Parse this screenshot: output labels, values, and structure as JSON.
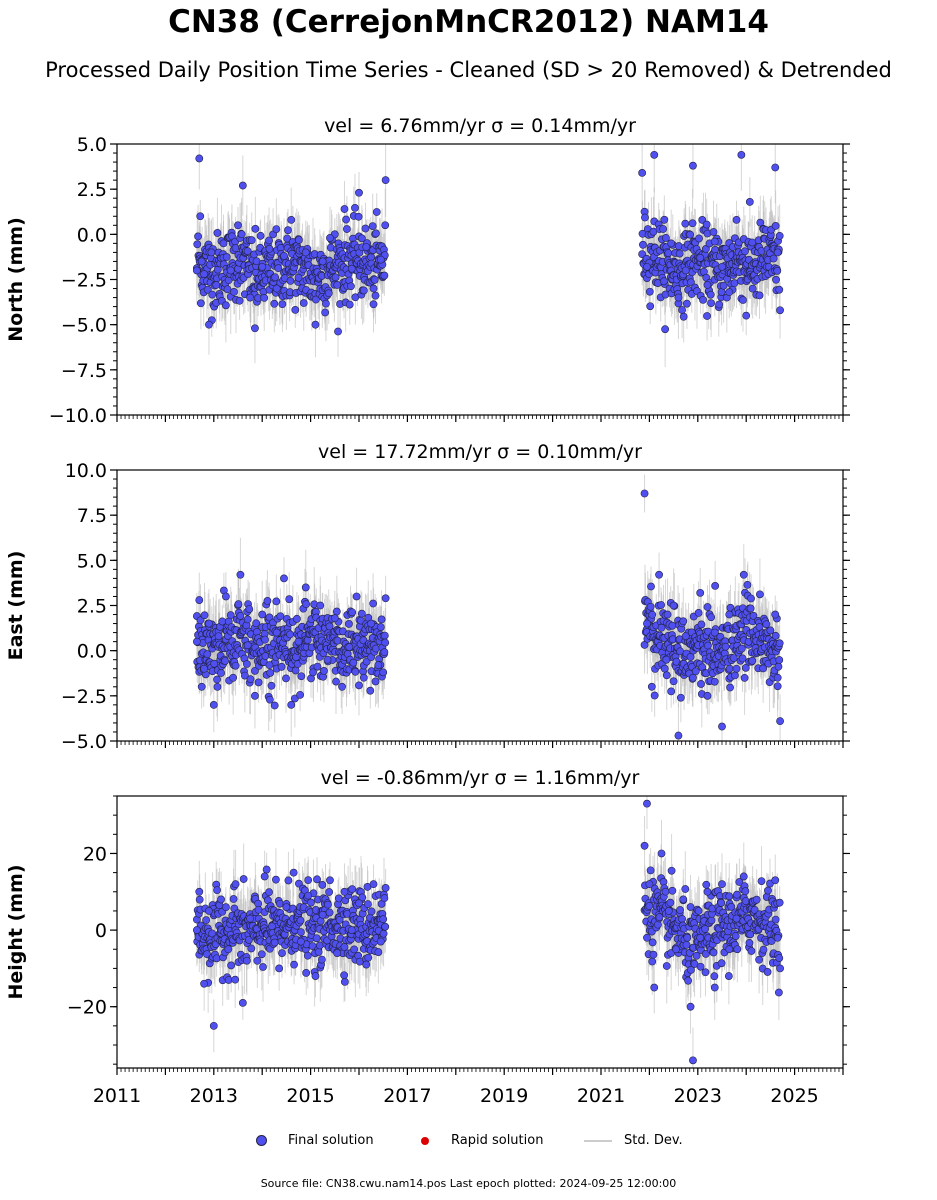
{
  "title": "CN38 (CerrejonMnCR2012) NAM14",
  "subtitle": "Processed Daily Position Time Series - Cleaned (SD > 20 Removed) & Detrended",
  "legend": {
    "final": "Final solution",
    "rapid": "Rapid solution",
    "std": "Std. Dev."
  },
  "footer": "Source file: CN38.cwu.nam14.pos  Last epoch plotted: 2024-09-25 12:00:00",
  "colors": {
    "final": "#5050f0",
    "final_edge": "#222244",
    "rapid": "#dd0000",
    "std": "#bbbbbb"
  },
  "chart_data": [
    {
      "type": "scatter",
      "title": "vel = 6.76mm/yr   σ = 0.14mm/yr",
      "ylabel": "North (mm)",
      "xlim": [
        2011,
        2026
      ],
      "ylim": [
        -10,
        5
      ],
      "yticks": [
        -10,
        -7.5,
        -5,
        -2.5,
        0,
        2.5,
        5
      ],
      "ytick_labels": [
        "−10.0",
        "−7.5",
        "−5.0",
        "−2.5",
        "0.0",
        "2.5",
        "5.0"
      ],
      "x": [
        2012.65,
        2012.7,
        2012.72,
        2012.75,
        2012.8,
        2012.9,
        2012.95,
        2013.05,
        2013.2,
        2013.35,
        2013.5,
        2013.6,
        2013.75,
        2013.85,
        2014.0,
        2014.15,
        2014.3,
        2014.45,
        2014.6,
        2014.75,
        2014.9,
        2015.1,
        2015.25,
        2015.4,
        2015.55,
        2015.7,
        2015.85,
        2016.0,
        2016.15,
        2016.3,
        2016.45,
        2016.55,
        2021.85,
        2021.95,
        2022.1,
        2022.3,
        2022.45,
        2022.6,
        2022.75,
        2022.9,
        2023.05,
        2023.2,
        2023.35,
        2023.5,
        2023.65,
        2023.8,
        2023.9,
        2024.0,
        2024.6,
        2024.65,
        2024.7
      ],
      "y": [
        -2.0,
        4.2,
        1.0,
        -1.5,
        -2.2,
        -5.0,
        -1.0,
        -2.8,
        -0.5,
        -2.0,
        0.5,
        2.7,
        -3.5,
        -5.2,
        -1.8,
        -0.8,
        -3.0,
        -1.2,
        0.8,
        -2.4,
        -1.0,
        -5.0,
        -1.5,
        -0.2,
        -2.8,
        1.4,
        -1.9,
        2.3,
        -0.7,
        -3.0,
        -1.4,
        3.0,
        3.4,
        -1.8,
        4.4,
        -2.6,
        -0.5,
        -3.5,
        -2.0,
        3.8,
        -1.3,
        -2.8,
        -0.4,
        -1.8,
        -3.2,
        0.8,
        4.4,
        -4.5,
        3.7,
        -1.0,
        -4.2
      ],
      "series": [
        {
          "name": "Final solution"
        }
      ]
    },
    {
      "type": "scatter",
      "title": "vel = 17.72mm/yr   σ = 0.10mm/yr",
      "ylabel": "East (mm)",
      "xlim": [
        2011,
        2026
      ],
      "ylim": [
        -5,
        10
      ],
      "yticks": [
        -5,
        -2.5,
        0,
        2.5,
        5,
        7.5,
        10
      ],
      "ytick_labels": [
        "−5.0",
        "−2.5",
        "0.0",
        "2.5",
        "5.0",
        "7.5",
        "10.0"
      ],
      "x": [
        2012.65,
        2012.7,
        2012.75,
        2012.8,
        2012.9,
        2013.0,
        2013.1,
        2013.25,
        2013.4,
        2013.55,
        2013.7,
        2013.85,
        2014.0,
        2014.15,
        2014.3,
        2014.45,
        2014.6,
        2014.75,
        2014.9,
        2015.05,
        2015.2,
        2015.35,
        2015.5,
        2015.65,
        2015.8,
        2015.95,
        2016.1,
        2016.25,
        2016.4,
        2016.55,
        2021.9,
        2021.95,
        2022.05,
        2022.2,
        2022.35,
        2022.5,
        2022.6,
        2022.75,
        2022.9,
        2023.05,
        2023.2,
        2023.35,
        2023.5,
        2023.65,
        2023.8,
        2023.95,
        2024.6,
        2024.65,
        2024.7
      ],
      "y": [
        0.5,
        2.8,
        -2.0,
        -1.0,
        1.5,
        -3.0,
        0.8,
        3.0,
        -1.5,
        4.2,
        0.3,
        -2.5,
        2.0,
        -0.8,
        1.0,
        4.0,
        -3.0,
        0.5,
        3.5,
        -1.2,
        2.5,
        -0.5,
        1.8,
        -2.0,
        0.2,
        3.0,
        -1.5,
        1.5,
        -0.8,
        2.9,
        8.7,
        1.5,
        -2.0,
        4.2,
        -0.5,
        2.5,
        -4.7,
        0.8,
        -1.5,
        3.2,
        -2.5,
        1.0,
        -4.2,
        2.0,
        -1.0,
        4.2,
        2.0,
        -1.5,
        -3.9
      ],
      "series": [
        {
          "name": "Final solution"
        }
      ]
    },
    {
      "type": "scatter",
      "title": "vel = -0.86mm/yr   σ = 1.16mm/yr",
      "ylabel": "Height (mm)",
      "xlim": [
        2011,
        2026
      ],
      "ylim": [
        -36,
        35
      ],
      "yticks": [
        -20,
        0,
        20
      ],
      "ytick_labels": [
        "−20",
        "0",
        "20"
      ],
      "x": [
        2012.65,
        2012.7,
        2012.8,
        2012.9,
        2013.0,
        2013.15,
        2013.3,
        2013.45,
        2013.6,
        2013.75,
        2013.9,
        2014.05,
        2014.2,
        2014.35,
        2014.5,
        2014.65,
        2014.8,
        2014.95,
        2015.1,
        2015.25,
        2015.4,
        2015.55,
        2015.7,
        2015.85,
        2016.0,
        2016.15,
        2016.3,
        2016.45,
        2016.55,
        2021.9,
        2021.95,
        2022.0,
        2022.1,
        2022.25,
        2022.4,
        2022.55,
        2022.7,
        2022.85,
        2022.9,
        2023.05,
        2023.2,
        2023.35,
        2023.5,
        2023.65,
        2023.8,
        2023.95,
        2024.6,
        2024.65,
        2024.7
      ],
      "y": [
        0.0,
        10.0,
        -14.0,
        5.0,
        -25.0,
        8.0,
        -5.0,
        12.0,
        -19.0,
        3.0,
        -8.0,
        14.0,
        1.0,
        -10.0,
        6.0,
        15.0,
        -3.0,
        9.0,
        -12.0,
        4.0,
        13.0,
        -6.0,
        10.0,
        0.0,
        7.0,
        -9.0,
        12.0,
        -3.0,
        11.0,
        22.0,
        33.0,
        12.0,
        -15.0,
        20.0,
        5.0,
        -5.0,
        8.0,
        -20.0,
        -34.0,
        -2.0,
        10.0,
        -15.0,
        12.0,
        -5.0,
        3.0,
        14.0,
        13.0,
        -2.0,
        -10.0
      ],
      "series": [
        {
          "name": "Final solution"
        }
      ]
    }
  ],
  "xaxis": {
    "major_ticks": [
      2011,
      2013,
      2015,
      2017,
      2019,
      2021,
      2023,
      2025
    ],
    "labels": [
      "2011",
      "2013",
      "2015",
      "2017",
      "2019",
      "2021",
      "2023",
      "2025"
    ]
  }
}
